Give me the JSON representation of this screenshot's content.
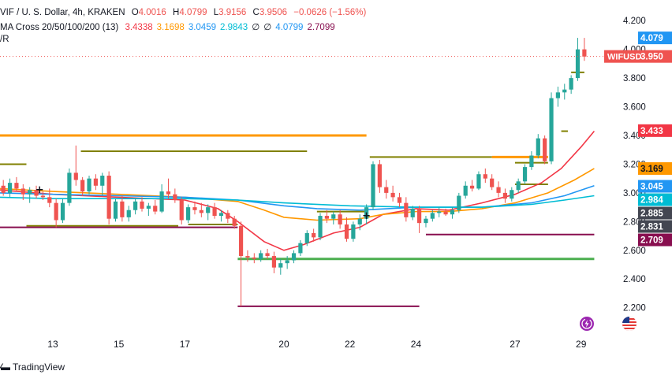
{
  "header": {
    "symbol_line": "VIF / U. S. Dollar, 4h, KRAKEN",
    "ohlc": {
      "o_label": "O",
      "o": "4.0016",
      "h_label": "H",
      "h": "4.0799",
      "l_label": "L",
      "l": "3.9156",
      "c_label": "C",
      "c": "3.9506",
      "change": "−0.0626 (−1.56%)"
    },
    "ma_line": {
      "label": "MA Cross 20/50/100/200 (13)",
      "values": [
        {
          "text": "3.4338",
          "color": "#f23645"
        },
        {
          "text": "3.1698",
          "color": "#ff9800"
        },
        {
          "text": "3.0459",
          "color": "#2196f3"
        },
        {
          "text": "2.9843",
          "color": "#00bcd4"
        },
        {
          "text": "∅",
          "color": "#131722"
        },
        {
          "text": "∅",
          "color": "#131722"
        },
        {
          "text": "4.0799",
          "color": "#2196f3"
        },
        {
          "text": "2.7099",
          "color": "#880e4f"
        }
      ]
    },
    "third_line": "/R"
  },
  "logo": {
    "text": "TradingView",
    "icon": "tradingview-logo-icon"
  },
  "colors": {
    "up": "#26a69a",
    "down": "#ef5350",
    "ma20": "#f23645",
    "ma50": "#ff9800",
    "ma100": "#2196f3",
    "ma200": "#00bcd4",
    "orange_level": "#ff9800",
    "olive_level": "#808000",
    "maroon_level": "#880e4f",
    "green_level": "#4caf50"
  },
  "icons": {
    "lightning": "lightning-icon",
    "flag": "us-flag-icon"
  },
  "chart_data": {
    "type": "candlestick",
    "title": "",
    "y_ticks": [
      "4.200",
      "4.000",
      "3.800",
      "3.600",
      "3.400",
      "3.200",
      "3.000",
      "2.800",
      "2.600",
      "2.400",
      "2.200"
    ],
    "y_tick_values": [
      4.2,
      4.0,
      3.8,
      3.6,
      3.4,
      3.2,
      3.0,
      2.8,
      2.6,
      2.4,
      2.2
    ],
    "ylim": [
      2.05,
      4.3
    ],
    "x_ticks": [
      {
        "label": "13",
        "day": 13
      },
      {
        "label": "15",
        "day": 15
      },
      {
        "label": "17",
        "day": 17
      },
      {
        "label": "20",
        "day": 20
      },
      {
        "label": "22",
        "day": 22
      },
      {
        "label": "24",
        "day": 24
      },
      {
        "label": "27",
        "day": 27
      },
      {
        "label": "29",
        "day": 29
      }
    ],
    "xlim": [
      11.4,
      29.7
    ],
    "grid": false,
    "price_labels": [
      {
        "text": "4.079",
        "value": 4.0799,
        "bg": "#2196f3",
        "fg": "#ffffff"
      },
      {
        "text": "3.950",
        "value": 3.9506,
        "bg": "#ef5350",
        "fg": "#ffffff",
        "tag": "WIFUSD"
      },
      {
        "text": "3.433",
        "value": 3.4338,
        "bg": "#f23645",
        "fg": "#ffffff"
      },
      {
        "text": "3.169",
        "value": 3.1698,
        "bg": "#ff9800",
        "fg": "#131722"
      },
      {
        "text": "3.045",
        "value": 3.0459,
        "bg": "#2196f3",
        "fg": "#ffffff"
      },
      {
        "text": "2.984",
        "value": 2.9843,
        "bg": "#00bcd4",
        "fg": "#ffffff"
      },
      {
        "text": "2.885",
        "value": 2.885,
        "bg": "#434651",
        "fg": "#ffffff"
      },
      {
        "text": "2.831",
        "value": 2.831,
        "bg": "#434651",
        "fg": "#ffffff"
      },
      {
        "text": "2.709",
        "value": 2.7099,
        "bg": "#880e4f",
        "fg": "#ffffff"
      }
    ],
    "levels": [
      {
        "color": "orange_level",
        "value": 3.4,
        "from": 11.4,
        "to": 22.5,
        "width": 3
      },
      {
        "color": "olive_level",
        "value": 3.2,
        "from": 11.4,
        "to": 12.2,
        "width": 2
      },
      {
        "color": "olive_level",
        "value": 3.29,
        "from": 13.85,
        "to": 20.7,
        "width": 2
      },
      {
        "color": "olive_level",
        "value": 2.77,
        "from": 12.2,
        "to": 16.8,
        "width": 2
      },
      {
        "color": "maroon_level",
        "value": 2.76,
        "from": 11.4,
        "to": 18.6,
        "width": 2
      },
      {
        "color": "olive_level",
        "value": 2.78,
        "from": 17.1,
        "to": 18.6,
        "width": 2
      },
      {
        "color": "olive_level",
        "value": 3.25,
        "from": 22.6,
        "to": 26.3,
        "width": 2
      },
      {
        "color": "orange_level",
        "value": 3.25,
        "from": 26.3,
        "to": 28.0,
        "width": 3
      },
      {
        "color": "olive_level",
        "value": 3.21,
        "from": 27.0,
        "to": 28.0,
        "width": 2
      },
      {
        "color": "olive_level",
        "value": 3.06,
        "from": 27.0,
        "to": 28.0,
        "width": 2
      },
      {
        "color": "olive_level",
        "value": 3.43,
        "from": 28.4,
        "to": 28.6,
        "width": 2
      },
      {
        "color": "olive_level",
        "value": 3.84,
        "from": 28.7,
        "to": 29.1,
        "width": 2
      },
      {
        "color": "olive_level",
        "value": 2.87,
        "from": 21.0,
        "to": 22.5,
        "width": 2
      },
      {
        "color": "green_level",
        "value": 2.54,
        "from": 18.6,
        "to": 29.4,
        "width": 3
      },
      {
        "color": "maroon_level",
        "value": 2.71,
        "from": 24.3,
        "to": 29.4,
        "width": 2
      },
      {
        "color": "maroon_level",
        "value": 2.21,
        "from": 18.6,
        "to": 24.1,
        "width": 2
      }
    ],
    "ma_series": [
      {
        "color": "ma20",
        "points": [
          [
            11.4,
            3.02
          ],
          [
            13.0,
            2.99
          ],
          [
            15.0,
            2.97
          ],
          [
            17.0,
            2.95
          ],
          [
            18.0,
            2.89
          ],
          [
            18.6,
            2.8
          ],
          [
            19.4,
            2.66
          ],
          [
            20.0,
            2.6
          ],
          [
            20.6,
            2.64
          ],
          [
            21.5,
            2.72
          ],
          [
            22.3,
            2.76
          ],
          [
            23.0,
            2.85
          ],
          [
            24.0,
            2.89
          ],
          [
            25.0,
            2.88
          ],
          [
            26.0,
            2.93
          ],
          [
            27.0,
            2.99
          ],
          [
            27.8,
            3.07
          ],
          [
            28.4,
            3.17
          ],
          [
            29.0,
            3.32
          ],
          [
            29.4,
            3.43
          ]
        ]
      },
      {
        "color": "ma50",
        "points": [
          [
            11.4,
            3.03
          ],
          [
            13.0,
            3.01
          ],
          [
            15.0,
            2.99
          ],
          [
            17.0,
            2.97
          ],
          [
            18.6,
            2.94
          ],
          [
            19.4,
            2.88
          ],
          [
            20.0,
            2.83
          ],
          [
            21.0,
            2.81
          ],
          [
            22.3,
            2.82
          ],
          [
            23.0,
            2.85
          ],
          [
            24.0,
            2.87
          ],
          [
            25.0,
            2.87
          ],
          [
            26.0,
            2.89
          ],
          [
            27.0,
            2.93
          ],
          [
            28.0,
            3.0
          ],
          [
            28.8,
            3.09
          ],
          [
            29.4,
            3.17
          ]
        ]
      },
      {
        "color": "ma100",
        "points": [
          [
            11.4,
            3.0
          ],
          [
            13.0,
            2.99
          ],
          [
            15.0,
            2.98
          ],
          [
            17.0,
            2.97
          ],
          [
            18.6,
            2.95
          ],
          [
            20.0,
            2.91
          ],
          [
            21.0,
            2.89
          ],
          [
            22.3,
            2.88
          ],
          [
            24.0,
            2.9
          ],
          [
            26.0,
            2.9
          ],
          [
            27.5,
            2.93
          ],
          [
            28.5,
            2.98
          ],
          [
            29.4,
            3.05
          ]
        ]
      },
      {
        "color": "ma200",
        "points": [
          [
            11.4,
            2.97
          ],
          [
            13.0,
            2.96
          ],
          [
            15.0,
            2.96
          ],
          [
            17.0,
            2.96
          ],
          [
            18.6,
            2.95
          ],
          [
            20.0,
            2.93
          ],
          [
            22.0,
            2.91
          ],
          [
            24.0,
            2.9
          ],
          [
            26.0,
            2.9
          ],
          [
            27.5,
            2.92
          ],
          [
            28.5,
            2.95
          ],
          [
            29.4,
            2.98
          ]
        ]
      }
    ],
    "candles": [
      {
        "t": 11.5,
        "o": 3.05,
        "h": 3.09,
        "l": 2.98,
        "c": 3.0
      },
      {
        "t": 11.7,
        "o": 3.0,
        "h": 3.1,
        "l": 2.97,
        "c": 3.07
      },
      {
        "t": 11.9,
        "o": 3.07,
        "h": 3.11,
        "l": 3.01,
        "c": 3.03
      },
      {
        "t": 12.1,
        "o": 3.03,
        "h": 3.06,
        "l": 2.95,
        "c": 2.99
      },
      {
        "t": 12.3,
        "o": 2.99,
        "h": 3.04,
        "l": 2.93,
        "c": 3.02
      },
      {
        "t": 12.5,
        "o": 3.02,
        "h": 3.05,
        "l": 2.96,
        "c": 2.98
      },
      {
        "t": 12.7,
        "o": 2.98,
        "h": 3.01,
        "l": 2.95,
        "c": 2.97
      },
      {
        "t": 12.9,
        "o": 2.97,
        "h": 3.03,
        "l": 2.9,
        "c": 2.93
      },
      {
        "t": 13.1,
        "o": 2.93,
        "h": 2.96,
        "l": 2.76,
        "c": 2.81
      },
      {
        "t": 13.3,
        "o": 2.81,
        "h": 2.96,
        "l": 2.79,
        "c": 2.93
      },
      {
        "t": 13.5,
        "o": 2.93,
        "h": 3.17,
        "l": 2.91,
        "c": 3.14
      },
      {
        "t": 13.7,
        "o": 3.14,
        "h": 3.33,
        "l": 3.05,
        "c": 3.09
      },
      {
        "t": 13.9,
        "o": 3.09,
        "h": 3.11,
        "l": 2.98,
        "c": 3.01
      },
      {
        "t": 14.1,
        "o": 3.01,
        "h": 3.12,
        "l": 2.99,
        "c": 3.1
      },
      {
        "t": 14.3,
        "o": 3.1,
        "h": 3.13,
        "l": 3.02,
        "c": 3.05
      },
      {
        "t": 14.5,
        "o": 3.05,
        "h": 3.14,
        "l": 2.98,
        "c": 3.12
      },
      {
        "t": 14.7,
        "o": 3.12,
        "h": 3.15,
        "l": 2.78,
        "c": 2.82
      },
      {
        "t": 14.9,
        "o": 2.82,
        "h": 2.96,
        "l": 2.8,
        "c": 2.94
      },
      {
        "t": 15.1,
        "o": 2.94,
        "h": 2.98,
        "l": 2.8,
        "c": 2.83
      },
      {
        "t": 15.3,
        "o": 2.83,
        "h": 2.91,
        "l": 2.8,
        "c": 2.88
      },
      {
        "t": 15.5,
        "o": 2.88,
        "h": 2.96,
        "l": 2.85,
        "c": 2.94
      },
      {
        "t": 15.7,
        "o": 2.94,
        "h": 2.97,
        "l": 2.87,
        "c": 2.89
      },
      {
        "t": 15.9,
        "o": 2.89,
        "h": 2.93,
        "l": 2.84,
        "c": 2.91
      },
      {
        "t": 16.1,
        "o": 2.91,
        "h": 2.95,
        "l": 2.85,
        "c": 2.87
      },
      {
        "t": 16.3,
        "o": 2.87,
        "h": 3.06,
        "l": 2.86,
        "c": 3.01
      },
      {
        "t": 16.5,
        "o": 3.01,
        "h": 3.1,
        "l": 2.96,
        "c": 2.99
      },
      {
        "t": 16.7,
        "o": 2.99,
        "h": 3.03,
        "l": 2.93,
        "c": 2.95
      },
      {
        "t": 16.9,
        "o": 2.95,
        "h": 2.97,
        "l": 2.78,
        "c": 2.81
      },
      {
        "t": 17.1,
        "o": 2.81,
        "h": 2.92,
        "l": 2.79,
        "c": 2.9
      },
      {
        "t": 17.3,
        "o": 2.9,
        "h": 2.94,
        "l": 2.85,
        "c": 2.88
      },
      {
        "t": 17.5,
        "o": 2.88,
        "h": 2.93,
        "l": 2.83,
        "c": 2.86
      },
      {
        "t": 17.7,
        "o": 2.86,
        "h": 2.92,
        "l": 2.81,
        "c": 2.9
      },
      {
        "t": 17.9,
        "o": 2.9,
        "h": 2.93,
        "l": 2.82,
        "c": 2.84
      },
      {
        "t": 18.1,
        "o": 2.84,
        "h": 2.88,
        "l": 2.8,
        "c": 2.86
      },
      {
        "t": 18.3,
        "o": 2.86,
        "h": 2.88,
        "l": 2.79,
        "c": 2.82
      },
      {
        "t": 18.5,
        "o": 2.82,
        "h": 2.84,
        "l": 2.75,
        "c": 2.77
      },
      {
        "t": 18.7,
        "o": 2.77,
        "h": 2.8,
        "l": 2.21,
        "c": 2.56
      },
      {
        "t": 18.9,
        "o": 2.56,
        "h": 2.6,
        "l": 2.52,
        "c": 2.55
      },
      {
        "t": 19.1,
        "o": 2.55,
        "h": 2.58,
        "l": 2.51,
        "c": 2.54
      },
      {
        "t": 19.3,
        "o": 2.54,
        "h": 2.6,
        "l": 2.52,
        "c": 2.58
      },
      {
        "t": 19.5,
        "o": 2.58,
        "h": 2.61,
        "l": 2.54,
        "c": 2.56
      },
      {
        "t": 19.7,
        "o": 2.56,
        "h": 2.59,
        "l": 2.44,
        "c": 2.48
      },
      {
        "t": 19.9,
        "o": 2.48,
        "h": 2.54,
        "l": 2.43,
        "c": 2.51
      },
      {
        "t": 20.1,
        "o": 2.51,
        "h": 2.56,
        "l": 2.47,
        "c": 2.53
      },
      {
        "t": 20.3,
        "o": 2.53,
        "h": 2.6,
        "l": 2.51,
        "c": 2.58
      },
      {
        "t": 20.5,
        "o": 2.58,
        "h": 2.67,
        "l": 2.56,
        "c": 2.65
      },
      {
        "t": 20.7,
        "o": 2.65,
        "h": 2.74,
        "l": 2.63,
        "c": 2.72
      },
      {
        "t": 20.9,
        "o": 2.72,
        "h": 2.75,
        "l": 2.66,
        "c": 2.69
      },
      {
        "t": 21.1,
        "o": 2.69,
        "h": 2.86,
        "l": 2.67,
        "c": 2.84
      },
      {
        "t": 21.3,
        "o": 2.84,
        "h": 2.88,
        "l": 2.79,
        "c": 2.82
      },
      {
        "t": 21.5,
        "o": 2.82,
        "h": 2.87,
        "l": 2.78,
        "c": 2.85
      },
      {
        "t": 21.7,
        "o": 2.85,
        "h": 2.88,
        "l": 2.75,
        "c": 2.78
      },
      {
        "t": 21.9,
        "o": 2.78,
        "h": 2.83,
        "l": 2.66,
        "c": 2.68
      },
      {
        "t": 22.1,
        "o": 2.68,
        "h": 2.8,
        "l": 2.66,
        "c": 2.78
      },
      {
        "t": 22.3,
        "o": 2.78,
        "h": 2.85,
        "l": 2.74,
        "c": 2.82
      },
      {
        "t": 22.5,
        "o": 2.82,
        "h": 2.92,
        "l": 2.78,
        "c": 2.9
      },
      {
        "t": 22.7,
        "o": 2.9,
        "h": 3.22,
        "l": 2.88,
        "c": 3.2
      },
      {
        "t": 22.9,
        "o": 3.2,
        "h": 3.23,
        "l": 3.0,
        "c": 3.04
      },
      {
        "t": 23.1,
        "o": 3.04,
        "h": 3.09,
        "l": 2.96,
        "c": 3.0
      },
      {
        "t": 23.3,
        "o": 3.0,
        "h": 3.05,
        "l": 2.94,
        "c": 2.97
      },
      {
        "t": 23.5,
        "o": 2.97,
        "h": 3.0,
        "l": 2.9,
        "c": 2.93
      },
      {
        "t": 23.7,
        "o": 2.93,
        "h": 2.97,
        "l": 2.8,
        "c": 2.83
      },
      {
        "t": 23.9,
        "o": 2.83,
        "h": 2.91,
        "l": 2.81,
        "c": 2.89
      },
      {
        "t": 24.1,
        "o": 2.89,
        "h": 2.91,
        "l": 2.72,
        "c": 2.79
      },
      {
        "t": 24.3,
        "o": 2.79,
        "h": 2.84,
        "l": 2.76,
        "c": 2.82
      },
      {
        "t": 24.5,
        "o": 2.82,
        "h": 2.88,
        "l": 2.8,
        "c": 2.86
      },
      {
        "t": 24.7,
        "o": 2.86,
        "h": 2.9,
        "l": 2.83,
        "c": 2.87
      },
      {
        "t": 24.9,
        "o": 2.87,
        "h": 2.89,
        "l": 2.84,
        "c": 2.85
      },
      {
        "t": 25.1,
        "o": 2.85,
        "h": 2.9,
        "l": 2.82,
        "c": 2.88
      },
      {
        "t": 25.3,
        "o": 2.88,
        "h": 3.0,
        "l": 2.86,
        "c": 2.98
      },
      {
        "t": 25.5,
        "o": 2.98,
        "h": 3.08,
        "l": 2.96,
        "c": 3.05
      },
      {
        "t": 25.7,
        "o": 3.05,
        "h": 3.09,
        "l": 3.01,
        "c": 3.03
      },
      {
        "t": 25.9,
        "o": 3.03,
        "h": 3.15,
        "l": 3.02,
        "c": 3.13
      },
      {
        "t": 26.1,
        "o": 3.13,
        "h": 3.17,
        "l": 3.07,
        "c": 3.1
      },
      {
        "t": 26.3,
        "o": 3.1,
        "h": 3.13,
        "l": 3.02,
        "c": 3.04
      },
      {
        "t": 26.5,
        "o": 3.04,
        "h": 3.08,
        "l": 2.97,
        "c": 3.0
      },
      {
        "t": 26.7,
        "o": 3.0,
        "h": 3.03,
        "l": 2.93,
        "c": 2.96
      },
      {
        "t": 26.9,
        "o": 2.96,
        "h": 3.04,
        "l": 2.94,
        "c": 3.02
      },
      {
        "t": 27.1,
        "o": 3.02,
        "h": 3.1,
        "l": 3.0,
        "c": 3.08
      },
      {
        "t": 27.3,
        "o": 3.08,
        "h": 3.2,
        "l": 3.06,
        "c": 3.18
      },
      {
        "t": 27.5,
        "o": 3.18,
        "h": 3.29,
        "l": 3.16,
        "c": 3.26
      },
      {
        "t": 27.7,
        "o": 3.26,
        "h": 3.41,
        "l": 3.24,
        "c": 3.38
      },
      {
        "t": 27.9,
        "o": 3.38,
        "h": 3.4,
        "l": 3.2,
        "c": 3.22
      },
      {
        "t": 28.1,
        "o": 3.22,
        "h": 3.7,
        "l": 3.2,
        "c": 3.66
      },
      {
        "t": 28.3,
        "o": 3.66,
        "h": 3.74,
        "l": 3.6,
        "c": 3.7
      },
      {
        "t": 28.5,
        "o": 3.7,
        "h": 3.76,
        "l": 3.65,
        "c": 3.72
      },
      {
        "t": 28.7,
        "o": 3.72,
        "h": 3.82,
        "l": 3.69,
        "c": 3.8
      },
      {
        "t": 28.9,
        "o": 3.8,
        "h": 4.08,
        "l": 3.78,
        "c": 4.0
      },
      {
        "t": 29.1,
        "o": 4.0,
        "h": 4.08,
        "l": 3.92,
        "c": 3.95
      }
    ],
    "markers": [
      {
        "t": 12.6,
        "value": 3.02,
        "symbol": "+"
      },
      {
        "t": 22.5,
        "value": 2.84,
        "symbol": "+"
      }
    ]
  }
}
